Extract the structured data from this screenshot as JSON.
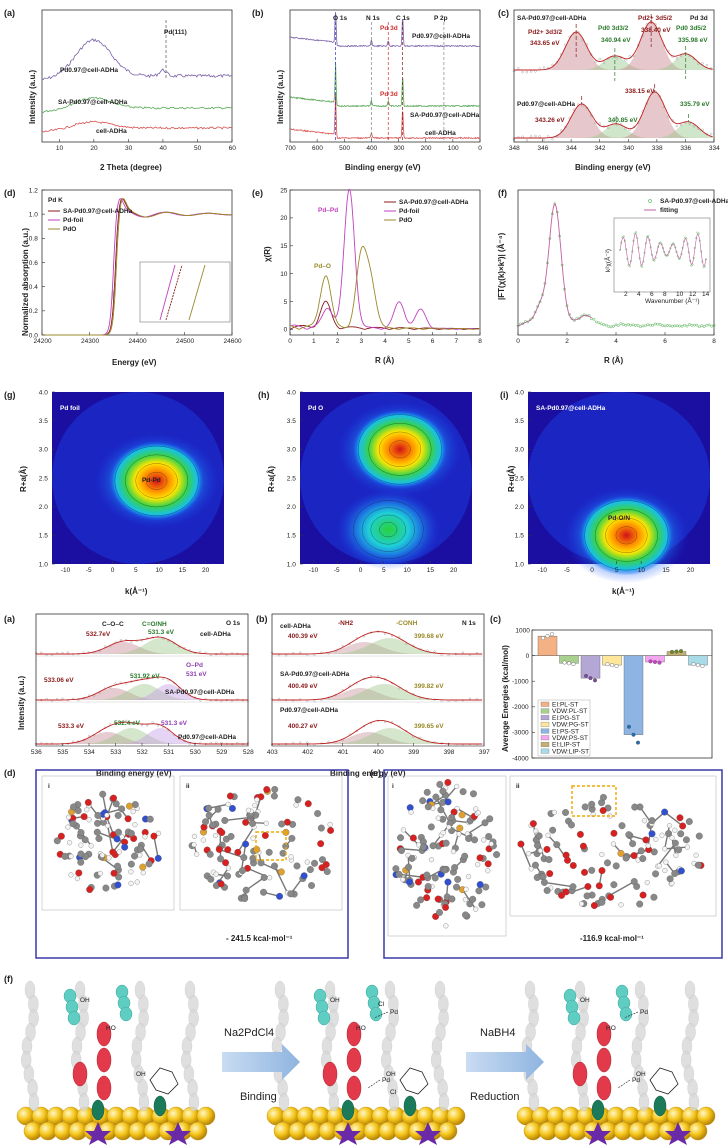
{
  "colors": {
    "purple": "#7b62a8",
    "green": "#58a858",
    "red": "#d85050",
    "magenta": "#c040c0",
    "olive": "#9a8a2a",
    "dkred": "#8a1a1a",
    "dkgreen": "#2a7a2a"
  },
  "chart_data": [
    {
      "panel": "(a)",
      "type": "line",
      "xlabel": "2 Theta (degree)",
      "ylabel": "Intensity (a.u.)",
      "xlim": [
        5,
        60
      ],
      "x_ticks": [
        "10",
        "20",
        "30",
        "40",
        "50",
        "60"
      ],
      "series": [
        {
          "name": "Pd0.97@cell-ADHa"
        },
        {
          "name": "SA-Pd0.97@cell-ADHa"
        },
        {
          "name": "cell-ADHa"
        }
      ],
      "annotations": [
        "Pd(111)"
      ],
      "peak_x": [
        20,
        40
      ]
    },
    {
      "panel": "(b)",
      "type": "line",
      "xlabel": "Binding energy (eV)",
      "ylabel": "Intensity (a.u.)",
      "xlim": [
        700,
        0
      ],
      "x_ticks": [
        "700",
        "600",
        "500",
        "400",
        "300",
        "200",
        "100",
        "0"
      ],
      "series": [
        {
          "name": "Pd0.97@cell-ADHa"
        },
        {
          "name": "SA-Pd0.97@cell-ADHa"
        },
        {
          "name": "cell-ADHa"
        }
      ],
      "peaks": [
        "O 1s",
        "N 1s",
        "C 1s",
        "P 2p",
        "Pd 3d",
        "Pd 3d"
      ],
      "peak_x": [
        532,
        400,
        285,
        133,
        338,
        338
      ]
    },
    {
      "panel": "(c)",
      "type": "line",
      "xlabel": "Binding energy (eV)",
      "xlim": [
        348,
        334
      ],
      "x_ticks": [
        "348",
        "346",
        "344",
        "342",
        "340",
        "338",
        "336",
        "334"
      ],
      "corner_label": "Pd 3d",
      "series": [
        {
          "name": "SA-Pd0.97@cell-ADHa",
          "peaks_eV": [
            343.65,
            340.94,
            338.4,
            335.98
          ]
        },
        {
          "name": "Pd0.97@cell-ADHa",
          "peaks_eV": [
            343.26,
            340.85,
            338.15,
            335.79
          ]
        }
      ],
      "peak_labels": [
        "Pd2+ 3d3/2",
        "Pd0 3d3/2",
        "Pd2+ 3d5/2",
        "Pd0 3d5/2"
      ],
      "value_labels": [
        "343.65 eV",
        "340.94 eV",
        "338.40 eV",
        "335.98 eV",
        "343.26 eV",
        "340.85 eV",
        "338.15 eV",
        "335.79 eV"
      ]
    },
    {
      "panel": "(d)",
      "type": "line",
      "xlabel": "Energy (eV)",
      "ylabel": "Normalized absorption (a.u.)",
      "xlim": [
        24200,
        24600
      ],
      "ylim": [
        0,
        1.2
      ],
      "x_ticks": [
        "24200",
        "24300",
        "24400",
        "24500",
        "24600"
      ],
      "y_ticks": [
        "0.0",
        "0.2",
        "0.4",
        "0.6",
        "0.8",
        "1.0",
        "1.2"
      ],
      "corner_label": "Pd K",
      "series": [
        {
          "name": "SA-Pd0.97@cell-ADHa"
        },
        {
          "name": "Pd-foil"
        },
        {
          "name": "PdO"
        }
      ],
      "edge_eV": [
        24354,
        24350,
        24356
      ]
    },
    {
      "panel": "(e)",
      "type": "line",
      "xlabel": "R (Å)",
      "ylabel": "χ(R)",
      "xlim": [
        0,
        8
      ],
      "ylim": [
        0,
        25
      ],
      "x_ticks": [
        "0",
        "1",
        "2",
        "3",
        "4",
        "5",
        "6",
        "7",
        "8"
      ],
      "y_ticks": [
        "0",
        "5",
        "10",
        "15",
        "20",
        "25"
      ],
      "series": [
        {
          "name": "SA-Pd0.97@cell-ADHa",
          "peaks": [
            [
              1.5,
              4.5
            ]
          ]
        },
        {
          "name": "Pd-foil",
          "peaks": [
            [
              2.5,
              24.8
            ],
            [
              1.6,
              3.5
            ],
            [
              4.6,
              4.7
            ],
            [
              5.5,
              3.4
            ]
          ]
        },
        {
          "name": "PdO",
          "peaks": [
            [
              1.5,
              9.5
            ],
            [
              3.0,
              12.5
            ],
            [
              3.4,
              8
            ]
          ]
        }
      ],
      "annotations": [
        "Pd–Pd",
        "Pd–O"
      ]
    },
    {
      "panel": "(f)",
      "type": "line",
      "xlabel": "R (Å)",
      "ylabel": "|FT(χ(k)×k²)| (Å⁻⁴)",
      "xlim": [
        0,
        8
      ],
      "x_ticks": [
        "0",
        "2",
        "4",
        "6",
        "8"
      ],
      "series": [
        {
          "name": "SA-Pd0.97@cell-ADHa"
        },
        {
          "name": "fitting"
        }
      ],
      "peak_R": 1.5,
      "inset": {
        "xlabel": "Wavenumber (Å⁻¹)",
        "ylabel": "k²χ(Å⁻²)",
        "x_ticks": [
          "2",
          "4",
          "6",
          "8",
          "10",
          "12",
          "14"
        ]
      }
    },
    {
      "panel": "(g)",
      "type": "heatmap",
      "title": "Pd foil",
      "xlabel": "k(Å⁻¹)",
      "ylabel": "R+a(Å)",
      "xlim": [
        -13,
        24
      ],
      "ylim": [
        1,
        4
      ],
      "x_ticks": [
        "-10",
        "-5",
        "0",
        "5",
        "10",
        "15",
        "20"
      ],
      "y_ticks": [
        "1.0",
        "1.5",
        "2.0",
        "2.5",
        "3.0",
        "3.5",
        "4.0"
      ],
      "annotations": [
        "Pd-Pd"
      ],
      "hotspots": [
        {
          "k": 9.5,
          "R": 2.45,
          "intensity": 1.0
        }
      ]
    },
    {
      "panel": "(h)",
      "type": "heatmap",
      "title": "Pd O",
      "ylabel": "R+a(Å)",
      "xlim": [
        -13,
        24
      ],
      "ylim": [
        1,
        4
      ],
      "x_ticks": [
        "-10",
        "-5",
        "0",
        "5",
        "10",
        "15",
        "20"
      ],
      "y_ticks": [
        "1.0",
        "1.5",
        "2.0",
        "2.5",
        "3.0",
        "3.5",
        "4.0"
      ],
      "hotspots": [
        {
          "k": 8.5,
          "R": 3.0,
          "intensity": 1.0
        },
        {
          "k": 6,
          "R": 1.6,
          "intensity": 0.6
        }
      ]
    },
    {
      "panel": "(i)",
      "type": "heatmap",
      "title": "SA-Pd0.97@cell-ADHa",
      "xlabel": "k(Å⁻¹)",
      "ylabel": "R+α(Å)",
      "xlim": [
        -13,
        24
      ],
      "ylim": [
        1,
        4
      ],
      "x_ticks": [
        "-10",
        "-5",
        "0",
        "5",
        "10",
        "15",
        "20"
      ],
      "y_ticks": [
        "1.0",
        "1.5",
        "2.0",
        "2.5",
        "3.0",
        "3.5",
        "4.0"
      ],
      "annotations": [
        "Pd-O/N"
      ],
      "hotspots": [
        {
          "k": 7,
          "R": 1.5,
          "intensity": 1.0
        }
      ]
    },
    {
      "panel": "(a)",
      "type": "line",
      "xlabel": "Binding energy (eV)",
      "ylabel": "Intensity (a.u.)",
      "xlim": [
        536,
        528
      ],
      "x_ticks": [
        "536",
        "535",
        "534",
        "533",
        "532",
        "531",
        "530",
        "529",
        "528"
      ],
      "corner_label": "O 1s",
      "series": [
        {
          "name": "cell-ADHa",
          "peaks_eV": [
            532.7,
            531.3
          ]
        },
        {
          "name": "SA-Pd0.97@cell-ADHa",
          "peaks_eV": [
            533.06,
            531.92,
            531
          ]
        },
        {
          "name": "Pd0.97@cell-ADHa",
          "peaks_eV": [
            533.3,
            532.4,
            531.3
          ]
        }
      ],
      "annotations": [
        "C–O–C",
        "C=O/NH",
        "O–Pd"
      ],
      "value_labels": [
        "532.7eV",
        "531.3 eV",
        "533.06 eV",
        "531.92 eV",
        "531 eV",
        "533.3 eV",
        "532.4 eV",
        "531.3 eV"
      ]
    },
    {
      "panel": "(b)",
      "type": "line",
      "xlabel": "Binding energy (eV)",
      "xlim": [
        403,
        397
      ],
      "x_ticks": [
        "403",
        "402",
        "401",
        "400",
        "399",
        "398",
        "397"
      ],
      "corner_label": "N 1s",
      "series": [
        {
          "name": "cell-ADHa",
          "peaks_eV": [
            400.39,
            399.68
          ]
        },
        {
          "name": "SA-Pd0.97@cell-ADHa",
          "peaks_eV": [
            400.49,
            399.82
          ]
        },
        {
          "name": "Pd0.97@cell-ADHa",
          "peaks_eV": [
            400.27,
            399.65
          ]
        }
      ],
      "annotations": [
        "-NH2",
        "-CONH"
      ],
      "value_labels": [
        "400.39 eV",
        "399.68 eV",
        "400.49 eV",
        "399.82 eV",
        "400.27 eV",
        "399.65 eV"
      ]
    },
    {
      "panel": "(c)",
      "type": "bar",
      "ylabel": "Average Energies (kcal/mol)",
      "ylim": [
        -4000,
        1000
      ],
      "y_ticks": [
        "1000",
        "0",
        "-1000",
        "-2000",
        "-3000",
        "-4000"
      ],
      "categories": [
        "EI:PL-ST",
        "VDW:PL-ST",
        "EI:PG-ST",
        "VDW:PG-ST",
        "EI:PS-ST",
        "VDW:PS-ST",
        "EI:LIP-ST",
        "VDW:LIP-ST"
      ],
      "values": [
        760,
        -300,
        -880,
        -370,
        -3090,
        -250,
        160,
        -370
      ],
      "colors": [
        "#f4b183",
        "#a9d18e",
        "#b4a7d6",
        "#ffe699",
        "#8eb4e3",
        "#f4a6f0",
        "#c5b070",
        "#a7dbe8"
      ]
    }
  ],
  "panel_labels": {
    "a": "(a)",
    "b": "(b)",
    "c": "(c)",
    "d": "(d)",
    "e": "(e)",
    "f": "(f)",
    "g": "(g)",
    "h": "(h)",
    "i": "(i)"
  },
  "sim": {
    "left_i": "i",
    "left_ii": "ii",
    "left_energy": "- 241.5 kcal·mol⁻¹",
    "right_i": "i",
    "right_ii": "ii",
    "right_energy": "-116.9 kcal·mol⁻¹"
  },
  "scheme": {
    "reagent": "Na2PdCl4",
    "step1": "Binding",
    "reductant": "NaBH4",
    "step2": "Reduction",
    "labels": [
      "OH",
      "HO",
      "Cl",
      "Pd",
      "O"
    ]
  }
}
